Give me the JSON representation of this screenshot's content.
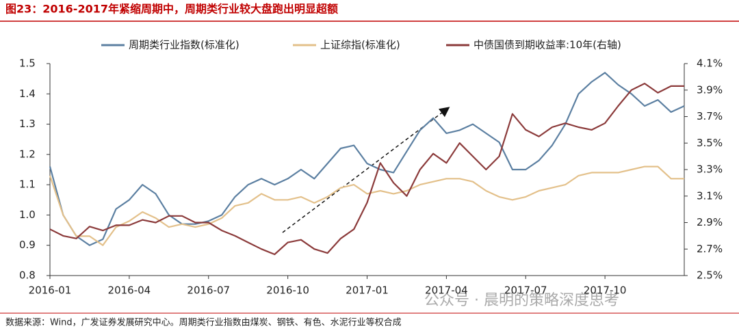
{
  "header": {
    "title": "图23：2016-2017年紧缩周期中，周期类行业较大盘跑出明显超额"
  },
  "chart_data": {
    "type": "line",
    "x": [
      0,
      0.5,
      1,
      1.5,
      2,
      2.5,
      3,
      3.5,
      4,
      4.5,
      5,
      5.5,
      6,
      6.5,
      7,
      7.5,
      8,
      8.5,
      9,
      9.5,
      10,
      10.5,
      11,
      11.5,
      12,
      12.5,
      13,
      13.5,
      14,
      14.5,
      15,
      15.5,
      16,
      16.5,
      17,
      17.5,
      18,
      18.5,
      19,
      19.5,
      20,
      20.5,
      21,
      21.5,
      22,
      22.5,
      23,
      23.5,
      24
    ],
    "xlim": [
      0,
      24
    ],
    "xticks": [
      {
        "value": 0,
        "label": "2016-01"
      },
      {
        "value": 3,
        "label": "2016-04"
      },
      {
        "value": 6,
        "label": "2016-07"
      },
      {
        "value": 9,
        "label": "2016-10"
      },
      {
        "value": 12,
        "label": "2017-01"
      },
      {
        "value": 15,
        "label": "2017-04"
      },
      {
        "value": 18,
        "label": "2017-07"
      },
      {
        "value": 21,
        "label": "2017-10"
      }
    ],
    "ylim": [
      0.8,
      1.5
    ],
    "yticks": [
      0.8,
      0.9,
      {
        "value": 1,
        "label": "1.0"
      },
      1.1,
      1.2,
      1.3,
      1.4,
      1.5
    ],
    "y2lim": [
      2.5,
      4.1
    ],
    "y2ticks": [
      {
        "value": 2.5,
        "label": "2.5%"
      },
      {
        "value": 2.7,
        "label": "2.7%"
      },
      {
        "value": 2.9,
        "label": "2.9%"
      },
      {
        "value": 3.1,
        "label": "3.1%"
      },
      {
        "value": 3.3,
        "label": "3.3%"
      },
      {
        "value": 3.5,
        "label": "3.5%"
      },
      {
        "value": 3.7,
        "label": "3.7%"
      },
      {
        "value": 3.9,
        "label": "3.9%"
      },
      {
        "value": 4.1,
        "label": "4.1%"
      }
    ],
    "series": [
      {
        "name": "周期类行业指数(标准化)",
        "color": "#5b7fa1",
        "values": [
          1.16,
          1.0,
          0.93,
          0.9,
          0.92,
          1.02,
          1.05,
          1.1,
          1.07,
          1.0,
          0.97,
          0.97,
          0.98,
          1.0,
          1.06,
          1.1,
          1.12,
          1.1,
          1.12,
          1.15,
          1.12,
          1.17,
          1.22,
          1.23,
          1.17,
          1.15,
          1.14,
          1.21,
          1.28,
          1.32,
          1.27,
          1.28,
          1.3,
          1.27,
          1.24,
          1.15,
          1.15,
          1.18,
          1.23,
          1.3,
          1.4,
          1.44,
          1.47,
          1.43,
          1.4,
          1.36,
          1.38,
          1.34,
          1.36
        ]
      },
      {
        "name": "上证综指(标准化)",
        "color": "#e3c08a",
        "values": [
          1.13,
          1.0,
          0.93,
          0.93,
          0.9,
          0.96,
          0.98,
          1.01,
          0.99,
          0.96,
          0.97,
          0.96,
          0.97,
          0.99,
          1.03,
          1.04,
          1.07,
          1.05,
          1.05,
          1.06,
          1.04,
          1.06,
          1.09,
          1.1,
          1.07,
          1.08,
          1.07,
          1.08,
          1.1,
          1.11,
          1.12,
          1.12,
          1.11,
          1.08,
          1.06,
          1.05,
          1.06,
          1.08,
          1.09,
          1.1,
          1.13,
          1.14,
          1.14,
          1.14,
          1.15,
          1.16,
          1.16,
          1.12,
          1.12
        ]
      },
      {
        "name": "中债国债到期收益率:10年(右轴)",
        "color": "#8b3a3a",
        "axis": "y2",
        "values": [
          2.85,
          2.8,
          2.78,
          2.87,
          2.84,
          2.88,
          2.88,
          2.92,
          2.9,
          2.95,
          2.95,
          2.9,
          2.9,
          2.84,
          2.8,
          2.75,
          2.7,
          2.66,
          2.75,
          2.77,
          2.7,
          2.67,
          2.78,
          2.85,
          3.05,
          3.35,
          3.2,
          3.1,
          3.3,
          3.42,
          3.35,
          3.5,
          3.4,
          3.3,
          3.4,
          3.72,
          3.6,
          3.55,
          3.62,
          3.65,
          3.62,
          3.6,
          3.65,
          3.78,
          3.9,
          3.95,
          3.88,
          3.93,
          3.93
        ]
      }
    ]
  },
  "watermark": "公众号 · 晨明的策略深度思考",
  "source": "数据来源：Wind，广发证券发展研究中心。周期类行业指数由煤炭、钢铁、有色、水泥行业等权合成"
}
